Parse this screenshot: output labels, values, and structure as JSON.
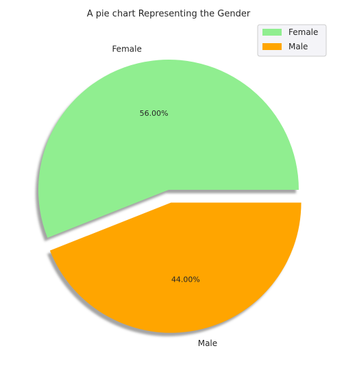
{
  "chart_data": {
    "type": "pie",
    "title": "A pie chart Representing the Gender",
    "start_angle_deg": 0,
    "shadow": true,
    "legend": "top-right",
    "slices": [
      {
        "label": "Female",
        "value": 56.0,
        "pct_text": "56.00%",
        "color": "#90ee90",
        "exploded": false
      },
      {
        "label": "Male",
        "value": 44.0,
        "pct_text": "44.00%",
        "color": "#ffa500",
        "exploded": true
      }
    ]
  }
}
